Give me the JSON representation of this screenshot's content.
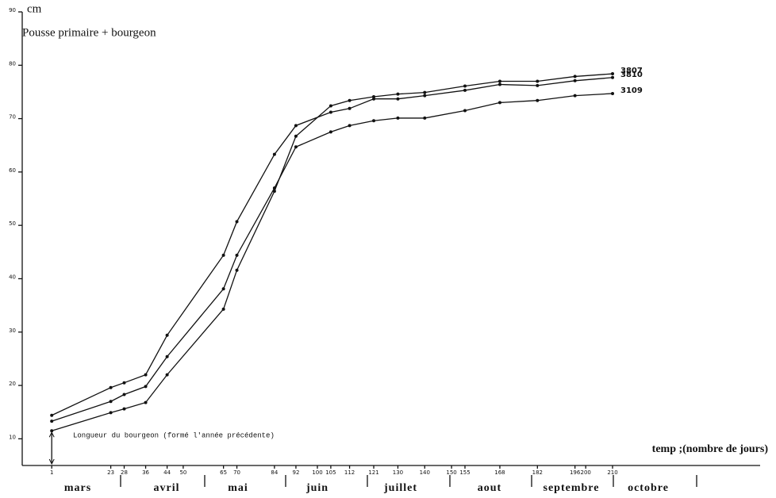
{
  "chart_data": {
    "type": "line",
    "title": "Pousse primaire + bourgeon",
    "y_label": "cm",
    "x_label": "temp ;(nombre de jours)",
    "annotation": "Longueur du bourgeon (formé l'année précédente)",
    "months": [
      "mars",
      "avril",
      "mai",
      "juin",
      "juillet",
      "aout",
      "septembre",
      "octobre"
    ],
    "x": [
      1,
      23,
      28,
      36,
      44,
      65,
      70,
      84,
      92,
      105,
      112,
      121,
      130,
      140,
      155,
      168,
      182,
      196,
      210
    ],
    "series": [
      {
        "name": "3807",
        "color": "#111111",
        "values": [
          11.5,
          14.9,
          15.6,
          16.8,
          22,
          34.3,
          41.6,
          56.4,
          66.7,
          72.4,
          73.4,
          74.1,
          74.6,
          74.9,
          76.1,
          77,
          77,
          77.9,
          78.4
        ]
      },
      {
        "name": "3810",
        "color": "#111111",
        "values": [
          14.4,
          19.6,
          20.5,
          22,
          29.4,
          44.4,
          50.7,
          63.3,
          68.7,
          71.2,
          71.9,
          73.7,
          73.7,
          74.3,
          75.3,
          76.4,
          76.2,
          77.1,
          77.7
        ]
      },
      {
        "name": "3109",
        "color": "#111111",
        "values": [
          13.3,
          17,
          18.3,
          19.8,
          25.4,
          38.1,
          44.4,
          57,
          64.7,
          67.5,
          68.7,
          69.6,
          70.1,
          70.1,
          71.5,
          73,
          73.4,
          74.3,
          74.7
        ]
      }
    ],
    "xlim": [
      -10,
      265
    ],
    "xticks": [
      1,
      23,
      28,
      36,
      44,
      50,
      65,
      70,
      84,
      92,
      100,
      105,
      112,
      121,
      130,
      140,
      150,
      155,
      168,
      182,
      196,
      200,
      210
    ],
    "ylim": [
      5,
      90
    ],
    "yticks": [
      10,
      20,
      30,
      40,
      50,
      60,
      70,
      80,
      90
    ],
    "grid": false
  }
}
